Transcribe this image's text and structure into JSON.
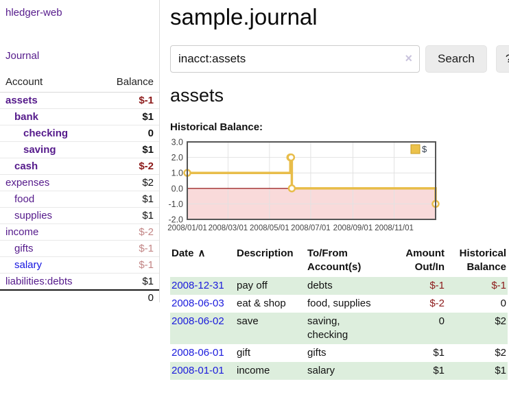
{
  "app": {
    "brand": "hledger-web"
  },
  "sidebar": {
    "journal_label": "Journal",
    "accounts_table": {
      "headers": {
        "account": "Account",
        "balance": "Balance"
      },
      "rows": [
        {
          "name": "assets",
          "balance": "$-1",
          "level": 0
        },
        {
          "name": "bank",
          "balance": "$1",
          "level": 1
        },
        {
          "name": "checking",
          "balance": "0",
          "level": 2
        },
        {
          "name": "saving",
          "balance": "$1",
          "level": 2
        },
        {
          "name": "cash",
          "balance": "$-2",
          "level": 1
        },
        {
          "name": "expenses",
          "balance": "$2",
          "level": 0
        },
        {
          "name": "food",
          "balance": "$1",
          "level": 1
        },
        {
          "name": "supplies",
          "balance": "$1",
          "level": 1
        },
        {
          "name": "income",
          "balance": "$-2",
          "level": 0
        },
        {
          "name": "gifts",
          "balance": "$-1",
          "level": 1
        },
        {
          "name": "salary",
          "balance": "$-1",
          "level": 1
        },
        {
          "name": "liabilities:debts",
          "balance": "$1",
          "level": 0
        }
      ],
      "total": "0"
    }
  },
  "header": {
    "title": "sample.journal"
  },
  "search": {
    "value": "inacct:assets",
    "clear_icon": "×",
    "button_label": "Search",
    "help_label": "?"
  },
  "main": {
    "account_heading": "assets",
    "chart_label": "Historical Balance:"
  },
  "chart_data": {
    "type": "line",
    "step": true,
    "title": "Historical Balance:",
    "ylim": [
      -2,
      3
    ],
    "yticks": [
      {
        "label": "3.0",
        "v": 3
      },
      {
        "label": "2.0",
        "v": 2
      },
      {
        "label": "1.0",
        "v": 1
      },
      {
        "label": "0.0",
        "v": 0
      },
      {
        "label": "-1.0",
        "v": -1
      },
      {
        "label": "-2.0",
        "v": -2
      }
    ],
    "xticks": [
      {
        "label": "2008/01/01",
        "f": 0.0
      },
      {
        "label": "2008/03/01",
        "f": 0.164
      },
      {
        "label": "2008/05/01",
        "f": 0.331
      },
      {
        "label": "2008/07/01",
        "f": 0.497
      },
      {
        "label": "2008/09/01",
        "f": 0.667
      },
      {
        "label": "2008/11/01",
        "f": 0.833
      }
    ],
    "series": [
      {
        "name": "$",
        "color": "#e8bd4a",
        "points": [
          {
            "date": "2008-01-01",
            "value": 1,
            "f": 0.0
          },
          {
            "date": "2008-06-01",
            "value": 2,
            "f": 0.415
          },
          {
            "date": "2008-06-02",
            "value": 2,
            "f": 0.418
          },
          {
            "date": "2008-06-03",
            "value": 0,
            "f": 0.421
          },
          {
            "date": "2008-12-31",
            "value": -1,
            "f": 1.0
          }
        ]
      }
    ],
    "legend": {
      "label": "$",
      "position": "top-right",
      "swatch_color": "#ecc24b"
    },
    "negative_fill": "#f9dada",
    "zero_line_color": "#8b0000",
    "grid": true,
    "border_color": "#555555"
  },
  "transactions": {
    "headers": {
      "date": "Date",
      "sort_icon": "∧",
      "description": "Description",
      "accounts": "To/From Account(s)",
      "amount": "Amount Out/In",
      "balance": "Historical Balance"
    },
    "rows": [
      {
        "date": "2008-12-31",
        "description": "pay off",
        "accounts": "debts",
        "amount": "$-1",
        "balance": "$-1"
      },
      {
        "date": "2008-06-03",
        "description": "eat & shop",
        "accounts": "food, supplies",
        "amount": "$-2",
        "balance": "0"
      },
      {
        "date": "2008-06-02",
        "description": "save",
        "accounts": "saving,\nchecking",
        "amount": "0",
        "balance": "$2"
      },
      {
        "date": "2008-06-01",
        "description": "gift",
        "accounts": "gifts",
        "amount": "$1",
        "balance": "$2"
      },
      {
        "date": "2008-01-01",
        "description": "income",
        "accounts": "salary",
        "amount": "$1",
        "balance": "$1"
      }
    ]
  },
  "colors": {
    "link_visited_purple": "#551a8b",
    "link_blue": "#1414e0",
    "negative_strong": "#8c1a1a",
    "negative_weak": "#c28585",
    "row_green": "#ddeedd",
    "chart_gold": "#e8bd4a",
    "chart_negative_fill": "#f9dada"
  }
}
